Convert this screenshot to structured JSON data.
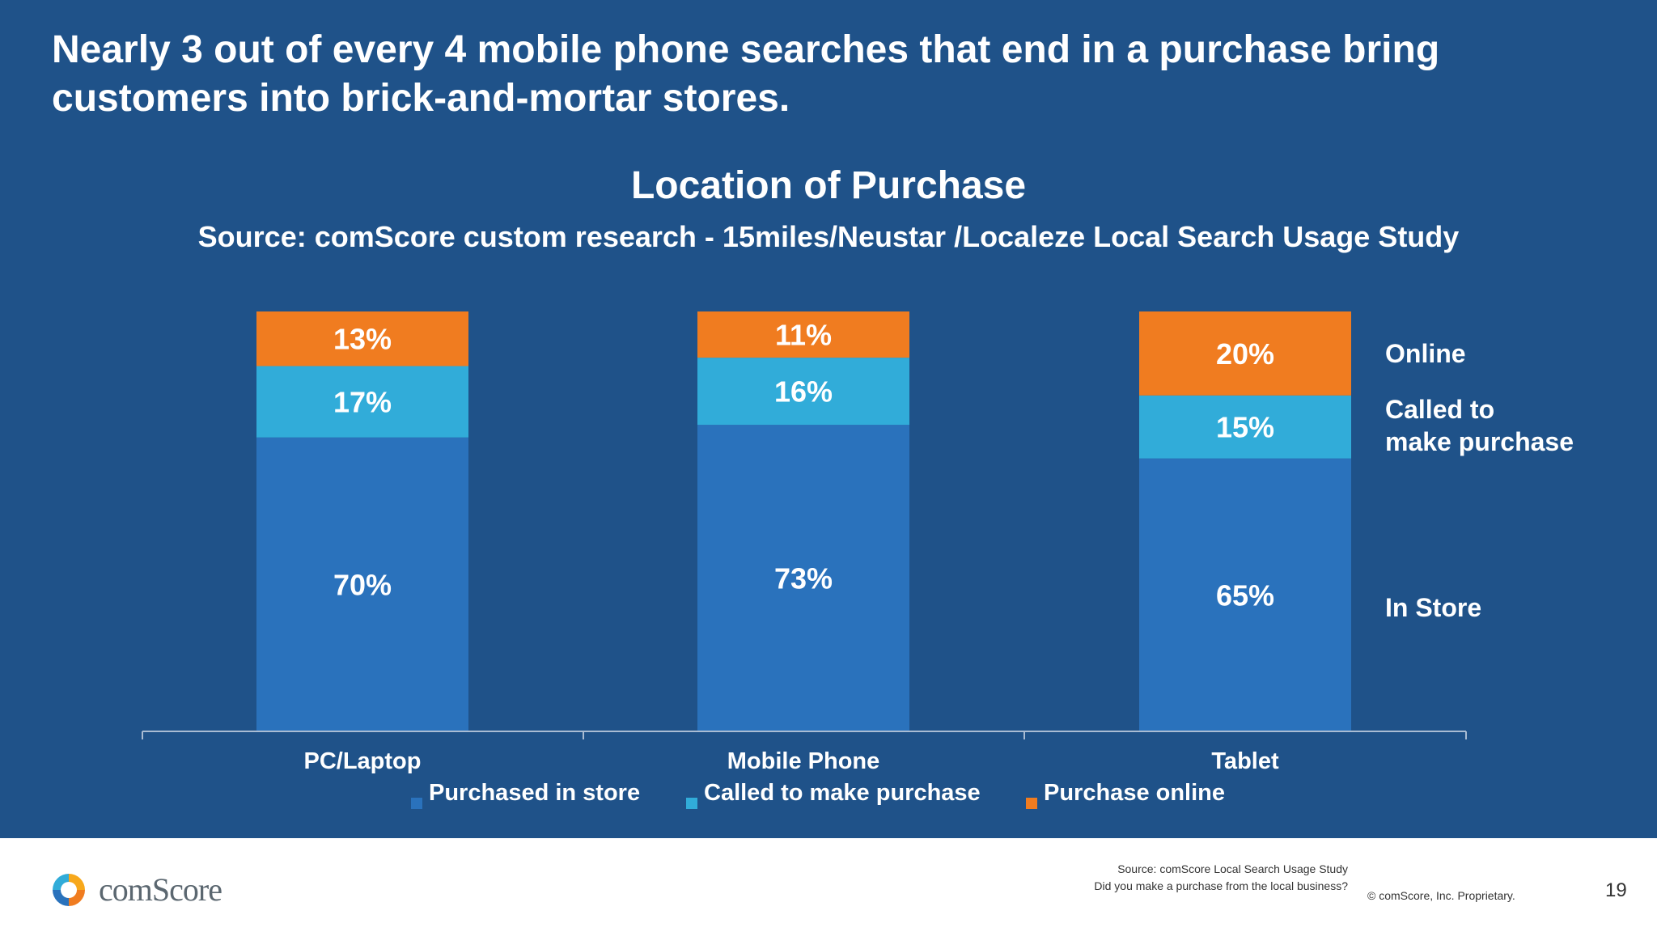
{
  "slide": {
    "headline": "Nearly 3 out of every 4 mobile phone searches that end in a purchase bring customers into brick-and-mortar stores.",
    "page_number": "19",
    "background": "#1f5289"
  },
  "chart_data": {
    "type": "bar",
    "stacked": true,
    "title": "Location of Purchase",
    "subtitle": "Source: comScore custom research - 15miles/Neustar /Localeze Local Search Usage Study",
    "categories": [
      "PC/Laptop",
      "Mobile Phone",
      "Tablet"
    ],
    "series": [
      {
        "name": "Purchased in store",
        "values": [
          70,
          73,
          65
        ],
        "labels": [
          "70%",
          "73%",
          "65%"
        ],
        "color": "#2a72bc"
      },
      {
        "name": "Called to make purchase",
        "values": [
          17,
          16,
          15
        ],
        "labels": [
          "17%",
          "16%",
          "15%"
        ],
        "color": "#31acd9"
      },
      {
        "name": "Purchase online",
        "values": [
          13,
          11,
          20
        ],
        "labels": [
          "13%",
          "11%",
          "20%"
        ],
        "color": "#f07c20"
      }
    ],
    "ylim": [
      0,
      100
    ],
    "grid": false,
    "legend": "bottom",
    "side_labels": {
      "online": "Online",
      "called": "Called to\nmake purchase",
      "in_store": "In Store"
    },
    "axis_color": "#a9bcd3"
  },
  "footer": {
    "logo_text": "comScore",
    "source_line1": "Source: comScore Local Search Usage Study",
    "source_line2": "Did you make a purchase from the local business?",
    "copyright": "© comScore, Inc. Proprietary."
  }
}
